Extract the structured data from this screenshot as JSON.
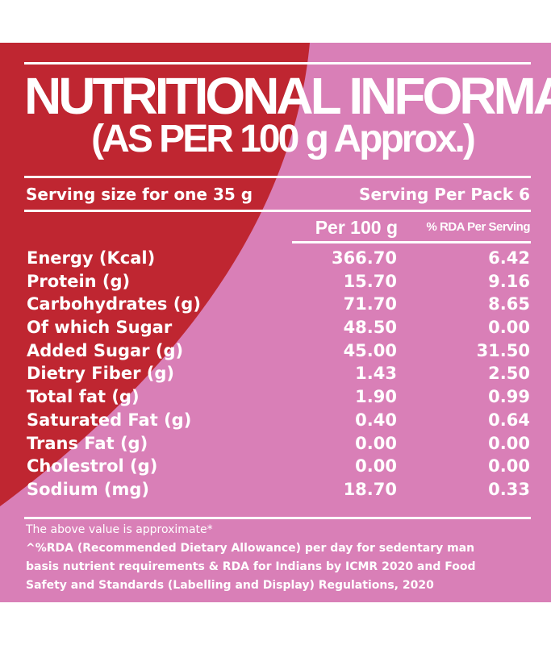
{
  "title": "NUTRITIONAL INFORMATION",
  "subtitle": "(AS PER 100 g Approx.)",
  "serving_size": "Serving size for one 35 g",
  "serving_per_pack": "Serving Per Pack 6",
  "columns": {
    "per_100g": "Per 100 g",
    "rda": "% RDA Per Serving"
  },
  "nutrients": [
    {
      "name": "Energy (Kcal)",
      "per_100g": "366.70",
      "rda": "6.42"
    },
    {
      "name": "Protein (g)",
      "per_100g": "15.70",
      "rda": "9.16"
    },
    {
      "name": "Carbohydrates (g)",
      "per_100g": "71.70",
      "rda": "8.65"
    },
    {
      "name": "Of which Sugar",
      "per_100g": "48.50",
      "rda": "0.00"
    },
    {
      "name": "Added Sugar (g)",
      "per_100g": "45.00",
      "rda": "31.50"
    },
    {
      "name": "Dietry Fiber (g)",
      "per_100g": "1.43",
      "rda": "2.50"
    },
    {
      "name": "Total fat (g)",
      "per_100g": "1.90",
      "rda": "0.99"
    },
    {
      "name": "Saturated Fat (g)",
      "per_100g": "0.40",
      "rda": "0.64"
    },
    {
      "name": "Trans Fat (g)",
      "per_100g": "0.00",
      "rda": "0.00"
    },
    {
      "name": "Cholestrol (g)",
      "per_100g": "0.00",
      "rda": "0.00"
    },
    {
      "name": "Sodium (mg)",
      "per_100g": "18.70",
      "rda": "0.33"
    }
  ],
  "footnote_1": "The above value is approximate*",
  "footnote_2": "^%RDA (Recommended Dietary Allowance) per day for sedentary man",
  "footnote_3": "basis nutrient requirements & RDA for Indians by ICMR 2020 and Food",
  "footnote_4": "Safety and Standards (Labelling and Display) Regulations, 2020",
  "colors": {
    "red": "#bf2631",
    "pink": "#d97fb7",
    "text": "#ffffff"
  }
}
